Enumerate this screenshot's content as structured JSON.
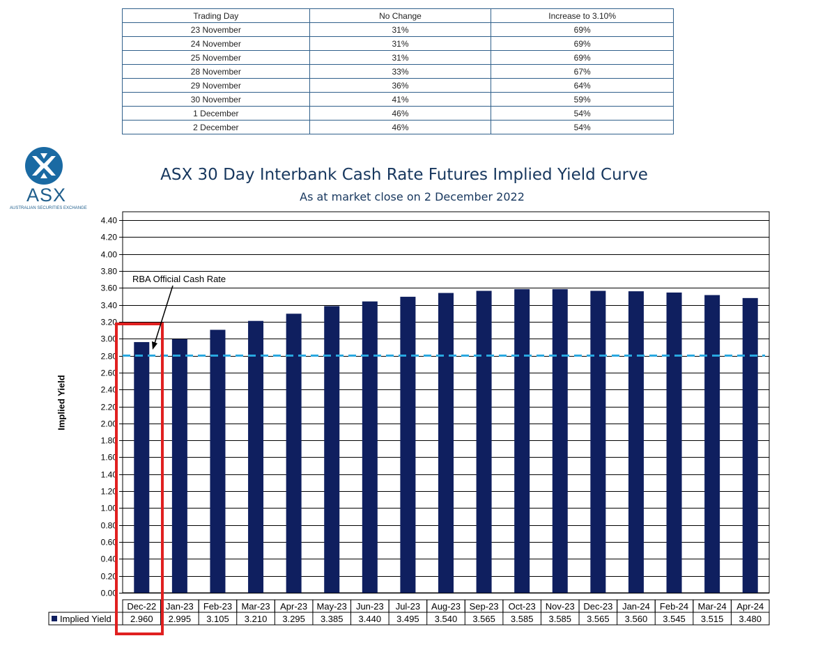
{
  "probability_table": {
    "headers": [
      "Trading Day",
      "No Change",
      "Increase to 3.10%"
    ],
    "rows": [
      [
        "23 November",
        "31%",
        "69%"
      ],
      [
        "24 November",
        "31%",
        "69%"
      ],
      [
        "25 November",
        "31%",
        "69%"
      ],
      [
        "28 November",
        "33%",
        "67%"
      ],
      [
        "29 November",
        "36%",
        "64%"
      ],
      [
        "30 November",
        "41%",
        "59%"
      ],
      [
        "1 December",
        "46%",
        "54%"
      ],
      [
        "2 December",
        "46%",
        "54%"
      ]
    ]
  },
  "logo": {
    "text": "ASX",
    "subtitle": "AUSTRALIAN SECURITIES EXCHANGE",
    "color": "#1f5e8c"
  },
  "chart_data": {
    "type": "bar",
    "title": "ASX 30 Day Interbank Cash Rate Futures Implied Yield Curve",
    "subtitle": "As at market close on 2 December 2022",
    "ylabel": "Implied Yield",
    "ylim": [
      0,
      4.4
    ],
    "ytick_step": 0.2,
    "yticks": [
      "0.00",
      "0.20",
      "0.40",
      "0.60",
      "0.80",
      "1.00",
      "1.20",
      "1.40",
      "1.60",
      "1.80",
      "2.00",
      "2.20",
      "2.40",
      "2.60",
      "2.80",
      "3.00",
      "3.20",
      "3.40",
      "3.60",
      "3.80",
      "4.00",
      "4.20",
      "4.40"
    ],
    "grid": true,
    "categories": [
      "Dec-22",
      "Jan-23",
      "Feb-23",
      "Mar-23",
      "Apr-23",
      "May-23",
      "Jun-23",
      "Jul-23",
      "Aug-23",
      "Sep-23",
      "Oct-23",
      "Nov-23",
      "Dec-23",
      "Jan-24",
      "Feb-24",
      "Mar-24",
      "Apr-24"
    ],
    "series": [
      {
        "name": "Implied Yield",
        "values": [
          2.96,
          2.995,
          3.105,
          3.21,
          3.295,
          3.385,
          3.44,
          3.495,
          3.54,
          3.565,
          3.585,
          3.585,
          3.565,
          3.56,
          3.545,
          3.515,
          3.48
        ],
        "labels": [
          "2.960",
          "2.995",
          "3.105",
          "3.210",
          "3.295",
          "3.385",
          "3.440",
          "3.495",
          "3.540",
          "3.565",
          "3.585",
          "3.585",
          "3.565",
          "3.560",
          "3.545",
          "3.515",
          "3.480"
        ],
        "color": "#0f1f5f"
      }
    ],
    "reference_line": {
      "value": 2.8,
      "color": "#29a8e0",
      "style": "dashed"
    },
    "annotations": [
      {
        "text": "RBA Official Cash Rate"
      }
    ],
    "highlight": {
      "category": "Dec-22",
      "color": "#e02020"
    }
  }
}
